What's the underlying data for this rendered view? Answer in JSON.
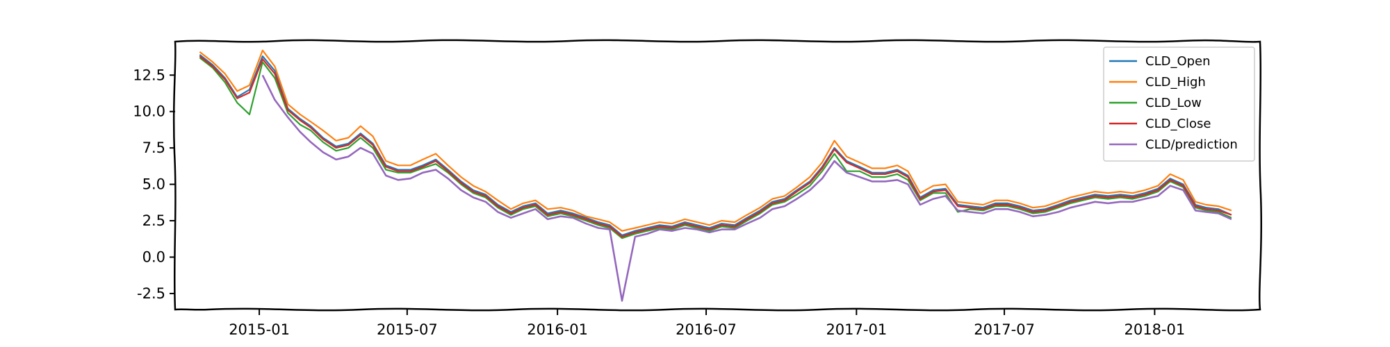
{
  "chart_data": {
    "type": "line",
    "title": "",
    "xlabel": "",
    "ylabel": "",
    "x_type": "date",
    "xlim": [
      "2014-09-20",
      "2018-05-10"
    ],
    "ylim": [
      -3.6,
      14.8
    ],
    "grid": false,
    "legend_position": "top-right",
    "x_ticks": [
      {
        "date": "2015-01-01",
        "label": "2015-01"
      },
      {
        "date": "2015-07-01",
        "label": "2015-07"
      },
      {
        "date": "2016-01-01",
        "label": "2016-01"
      },
      {
        "date": "2016-07-01",
        "label": "2016-07"
      },
      {
        "date": "2017-01-01",
        "label": "2017-01"
      },
      {
        "date": "2017-07-01",
        "label": "2017-07"
      },
      {
        "date": "2018-01-01",
        "label": "2018-01"
      }
    ],
    "y_ticks": [
      {
        "value": -2.5,
        "label": "-2.5"
      },
      {
        "value": 0.0,
        "label": "0.0"
      },
      {
        "value": 2.5,
        "label": "2.5"
      },
      {
        "value": 5.0,
        "label": "5.0"
      },
      {
        "value": 7.5,
        "label": "7.5"
      },
      {
        "value": 10.0,
        "label": "10.0"
      },
      {
        "value": 12.5,
        "label": "12.5"
      }
    ],
    "x": [
      "2014-10-20",
      "2014-11-05",
      "2014-11-20",
      "2014-12-05",
      "2014-12-20",
      "2015-01-05",
      "2015-01-20",
      "2015-02-05",
      "2015-02-20",
      "2015-03-05",
      "2015-03-20",
      "2015-04-05",
      "2015-04-20",
      "2015-05-05",
      "2015-05-20",
      "2015-06-05",
      "2015-06-20",
      "2015-07-05",
      "2015-07-20",
      "2015-08-05",
      "2015-08-20",
      "2015-09-05",
      "2015-09-20",
      "2015-10-05",
      "2015-10-20",
      "2015-11-05",
      "2015-11-20",
      "2015-12-05",
      "2015-12-20",
      "2016-01-05",
      "2016-01-20",
      "2016-02-05",
      "2016-02-20",
      "2016-03-05",
      "2016-03-20",
      "2016-04-05",
      "2016-04-20",
      "2016-05-05",
      "2016-05-20",
      "2016-06-05",
      "2016-06-20",
      "2016-07-05",
      "2016-07-20",
      "2016-08-05",
      "2016-08-20",
      "2016-09-05",
      "2016-09-20",
      "2016-10-05",
      "2016-10-20",
      "2016-11-05",
      "2016-11-20",
      "2016-12-05",
      "2016-12-20",
      "2017-01-05",
      "2017-01-20",
      "2017-02-05",
      "2017-02-20",
      "2017-03-05",
      "2017-03-20",
      "2017-04-05",
      "2017-04-20",
      "2017-05-05",
      "2017-05-20",
      "2017-06-05",
      "2017-06-20",
      "2017-07-05",
      "2017-07-20",
      "2017-08-05",
      "2017-08-20",
      "2017-09-05",
      "2017-09-20",
      "2017-10-05",
      "2017-10-20",
      "2017-11-05",
      "2017-11-20",
      "2017-12-05",
      "2017-12-20",
      "2018-01-05",
      "2018-01-20",
      "2018-02-05",
      "2018-02-20",
      "2018-03-05",
      "2018-03-20",
      "2018-04-05"
    ],
    "series": [
      {
        "name": "CLD_Open",
        "color": "#1f77b4",
        "values": [
          13.9,
          13.2,
          12.3,
          11.0,
          11.5,
          13.8,
          12.8,
          10.2,
          9.5,
          9.0,
          8.2,
          7.6,
          7.8,
          8.5,
          7.8,
          6.3,
          6.0,
          6.0,
          6.3,
          6.7,
          6.0,
          5.2,
          4.6,
          4.3,
          3.6,
          3.1,
          3.5,
          3.7,
          3.0,
          3.2,
          3.0,
          2.7,
          2.4,
          2.2,
          1.5,
          1.8,
          2.0,
          2.2,
          2.1,
          2.4,
          2.2,
          2.0,
          2.3,
          2.2,
          2.7,
          3.2,
          3.8,
          4.0,
          4.6,
          5.2,
          6.2,
          7.5,
          6.6,
          6.2,
          5.8,
          5.8,
          6.0,
          5.6,
          4.1,
          4.6,
          4.7,
          3.6,
          3.5,
          3.4,
          3.7,
          3.7,
          3.5,
          3.2,
          3.3,
          3.6,
          3.9,
          4.1,
          4.3,
          4.2,
          4.3,
          4.2,
          4.4,
          4.7,
          5.4,
          5.0,
          3.6,
          3.4,
          3.3,
          2.9
        ]
      },
      {
        "name": "CLD_High",
        "color": "#ff7f0e",
        "values": [
          14.1,
          13.4,
          12.6,
          11.4,
          11.8,
          14.2,
          13.1,
          10.5,
          9.8,
          9.3,
          8.7,
          8.0,
          8.2,
          9.0,
          8.3,
          6.6,
          6.3,
          6.3,
          6.7,
          7.1,
          6.3,
          5.5,
          4.9,
          4.5,
          3.9,
          3.3,
          3.7,
          3.9,
          3.3,
          3.4,
          3.2,
          2.8,
          2.6,
          2.4,
          1.8,
          2.0,
          2.2,
          2.4,
          2.3,
          2.6,
          2.4,
          2.2,
          2.5,
          2.4,
          2.9,
          3.4,
          4.0,
          4.2,
          4.8,
          5.5,
          6.5,
          8.0,
          6.9,
          6.5,
          6.1,
          6.1,
          6.3,
          5.9,
          4.4,
          4.9,
          5.0,
          3.8,
          3.7,
          3.6,
          3.9,
          3.9,
          3.7,
          3.4,
          3.5,
          3.8,
          4.1,
          4.3,
          4.5,
          4.4,
          4.5,
          4.4,
          4.6,
          4.9,
          5.7,
          5.3,
          3.8,
          3.6,
          3.5,
          3.2
        ]
      },
      {
        "name": "CLD_Low",
        "color": "#2ca02c",
        "values": [
          13.7,
          13.0,
          12.0,
          10.6,
          9.8,
          13.4,
          12.3,
          9.9,
          9.1,
          8.7,
          7.9,
          7.3,
          7.5,
          8.2,
          7.5,
          6.0,
          5.8,
          5.8,
          6.1,
          6.4,
          5.8,
          5.0,
          4.4,
          4.1,
          3.4,
          2.9,
          3.3,
          3.5,
          2.8,
          3.0,
          2.8,
          2.5,
          2.2,
          2.0,
          1.3,
          1.6,
          1.8,
          2.0,
          1.9,
          2.2,
          2.0,
          1.8,
          2.1,
          2.0,
          2.5,
          3.0,
          3.6,
          3.8,
          4.3,
          4.9,
          5.9,
          7.1,
          5.9,
          5.9,
          5.5,
          5.5,
          5.7,
          5.3,
          3.9,
          4.4,
          4.4,
          3.1,
          3.3,
          3.2,
          3.5,
          3.5,
          3.3,
          3.0,
          3.1,
          3.4,
          3.7,
          3.9,
          4.1,
          4.0,
          4.1,
          4.0,
          4.2,
          4.5,
          5.2,
          4.8,
          3.4,
          3.2,
          3.1,
          2.7
        ]
      },
      {
        "name": "CLD_Close",
        "color": "#d62728",
        "values": [
          13.8,
          13.1,
          12.2,
          10.9,
          11.3,
          13.6,
          12.6,
          10.1,
          9.4,
          8.9,
          8.1,
          7.5,
          7.7,
          8.4,
          7.7,
          6.2,
          5.9,
          5.9,
          6.2,
          6.6,
          5.9,
          5.1,
          4.5,
          4.2,
          3.5,
          3.0,
          3.4,
          3.6,
          2.9,
          3.1,
          2.9,
          2.6,
          2.3,
          2.1,
          1.4,
          1.7,
          1.9,
          2.1,
          2.0,
          2.3,
          2.1,
          1.9,
          2.2,
          2.1,
          2.6,
          3.1,
          3.7,
          3.9,
          4.5,
          5.1,
          6.1,
          7.4,
          6.5,
          6.1,
          5.7,
          5.7,
          5.9,
          5.5,
          4.0,
          4.5,
          4.6,
          3.5,
          3.4,
          3.3,
          3.6,
          3.6,
          3.4,
          3.1,
          3.2,
          3.5,
          3.8,
          4.0,
          4.2,
          4.1,
          4.2,
          4.1,
          4.3,
          4.6,
          5.3,
          4.9,
          3.5,
          3.3,
          3.2,
          2.9
        ]
      },
      {
        "name": "CLD/prediction",
        "color": "#9467bd",
        "values": [
          null,
          null,
          null,
          null,
          null,
          12.5,
          10.8,
          9.6,
          8.6,
          7.9,
          7.2,
          6.7,
          6.9,
          7.5,
          7.1,
          5.6,
          5.3,
          5.4,
          5.8,
          6.0,
          5.4,
          4.6,
          4.1,
          3.8,
          3.1,
          2.7,
          3.0,
          3.3,
          2.6,
          2.8,
          2.7,
          2.3,
          2.0,
          1.9,
          -3.0,
          1.4,
          1.6,
          1.9,
          1.8,
          2.0,
          1.9,
          1.7,
          1.9,
          1.9,
          2.3,
          2.7,
          3.3,
          3.5,
          4.0,
          4.6,
          5.4,
          6.6,
          5.8,
          5.5,
          5.2,
          5.2,
          5.3,
          5.0,
          3.6,
          4.0,
          4.2,
          3.2,
          3.1,
          3.0,
          3.3,
          3.3,
          3.1,
          2.8,
          2.9,
          3.1,
          3.4,
          3.6,
          3.8,
          3.7,
          3.8,
          3.8,
          4.0,
          4.2,
          4.9,
          4.6,
          3.2,
          3.1,
          3.0,
          2.6
        ]
      }
    ]
  }
}
